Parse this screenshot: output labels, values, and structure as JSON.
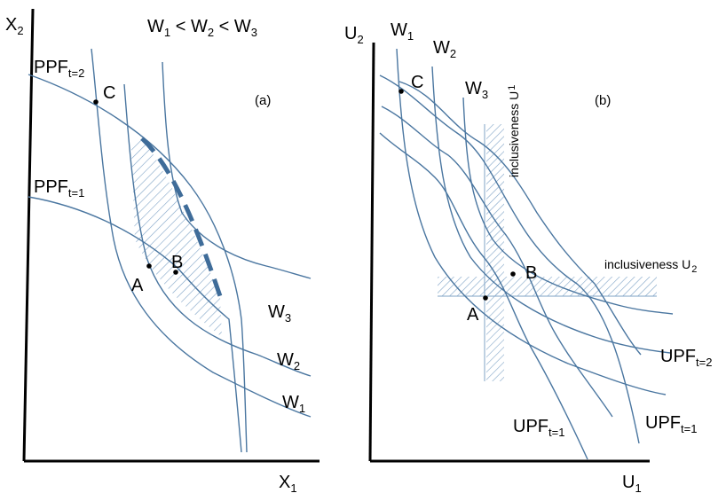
{
  "panel_a": {
    "x_axis": "X",
    "x_axis_sub": "1",
    "y_axis": "X",
    "y_axis_sub": "2",
    "ordering": {
      "w": "W",
      "s1": "1",
      "s2": "2",
      "s3": "3",
      "lt": "<"
    },
    "panel_label": "(a)",
    "ppf_t2": {
      "main": "PPF",
      "sub": "t=2"
    },
    "ppf_t1": {
      "main": "PPF",
      "sub": "t=1"
    },
    "points": {
      "a": "A",
      "b": "B",
      "c": "C"
    },
    "w3": {
      "main": "W",
      "sub": "3"
    },
    "w2": {
      "main": "W",
      "sub": "2"
    },
    "w1": {
      "main": "W",
      "sub": "1"
    }
  },
  "panel_b": {
    "x_axis": "U",
    "x_axis_sub": "1",
    "y_axis": "U",
    "y_axis_sub": "2",
    "panel_label": "(b)",
    "w1": {
      "main": "W",
      "sub": "1"
    },
    "w2": {
      "main": "W",
      "sub": "2"
    },
    "w3": {
      "main": "W",
      "sub": "3"
    },
    "inclusiveness_u1": {
      "main": "inclusiveness U",
      "sub": "1"
    },
    "inclusiveness_u2": {
      "main": "inclusiveness U",
      "sub": "2"
    },
    "points": {
      "a": "A",
      "b": "B",
      "c": "C"
    },
    "upf_t2": {
      "main": "UPF",
      "sub": "t=2"
    },
    "upf_t1_right": {
      "main": "UPF",
      "sub": "t=1"
    },
    "upf_t1_bottom": {
      "main": "UPF",
      "sub": "t=1"
    }
  },
  "colors": {
    "curve": "#4a76a0",
    "hatch": "#7fa3c6",
    "axis": "#000000"
  }
}
